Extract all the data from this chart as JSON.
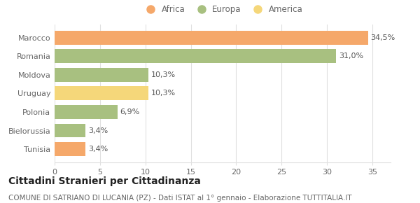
{
  "categories": [
    "Tunisia",
    "Bielorussia",
    "Polonia",
    "Uruguay",
    "Moldova",
    "Romania",
    "Marocco"
  ],
  "values": [
    3.4,
    3.4,
    6.9,
    10.3,
    10.3,
    31.0,
    34.5
  ],
  "colors": [
    "#F5A86A",
    "#A8C080",
    "#A8C080",
    "#F5D77A",
    "#A8C080",
    "#A8C080",
    "#F5A86A"
  ],
  "labels": [
    "3,4%",
    "3,4%",
    "6,9%",
    "10,3%",
    "10,3%",
    "31,0%",
    "34,5%"
  ],
  "legend": [
    {
      "label": "Africa",
      "color": "#F5A86A"
    },
    {
      "label": "Europa",
      "color": "#A8C080"
    },
    {
      "label": "America",
      "color": "#F5D77A"
    }
  ],
  "xlim": [
    0,
    37
  ],
  "xticks": [
    0,
    5,
    10,
    15,
    20,
    25,
    30,
    35
  ],
  "title": "Cittadini Stranieri per Cittadinanza",
  "subtitle": "COMUNE DI SATRIANO DI LUCANIA (PZ) - Dati ISTAT al 1° gennaio - Elaborazione TUTTITALIA.IT",
  "title_fontsize": 10,
  "subtitle_fontsize": 7.5,
  "background_color": "#ffffff",
  "bar_height": 0.75,
  "grid_color": "#e0e0e0",
  "label_fontsize": 8,
  "tick_fontsize": 8,
  "label_color": "#555555",
  "tick_color": "#666666"
}
